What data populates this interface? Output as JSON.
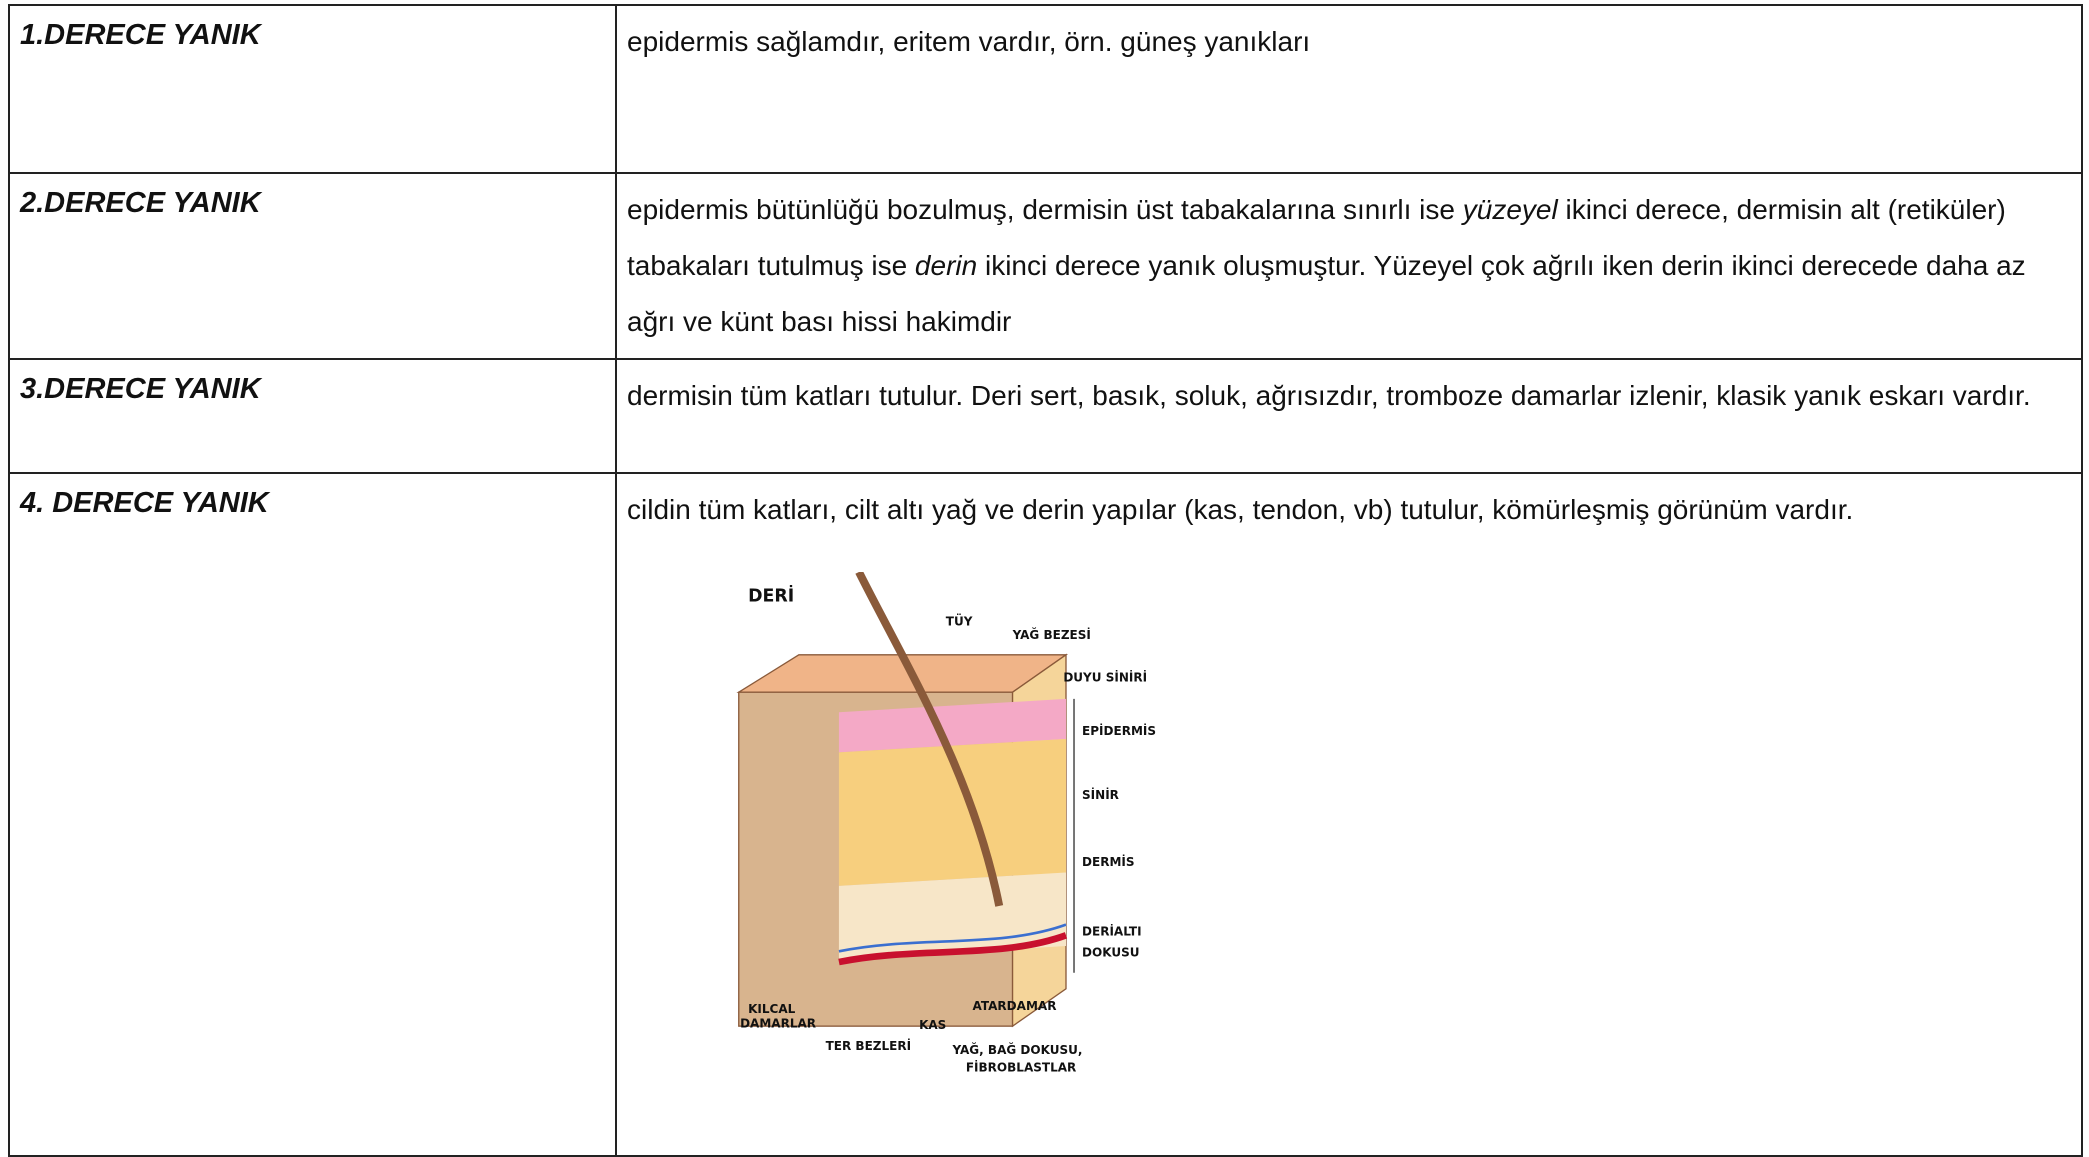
{
  "rows": [
    {
      "label": "1.DERECE YANIK",
      "text_parts": [
        "epidermis sağlamdır, eritem vardır, örn. güneş yanıkları"
      ]
    },
    {
      "label": "2.DERECE YANIK",
      "text_parts": [
        "epidermis bütünlüğü bozulmuş, dermisin üst tabakalarına sınırlı ise ",
        "yüzeyel",
        " ikinci derece, dermisin alt (retiküler) tabakaları tutulmuş ise ",
        "derin",
        " ikinci derece yanık oluşmuştur. Yüzeyel çok ağrılı iken derin ikinci derecede daha az ağrı ve künt bası hissi hakimdir"
      ]
    },
    {
      "label": "3.DERECE YANIK",
      "text_parts": [
        "dermisin tüm katları tutulur. Deri sert, basık, soluk, ağrısızdır, tromboze damarlar izlenir, klasik yanık eskarı vardır."
      ]
    },
    {
      "label": "4. DERECE YANIK",
      "text_parts": [
        "cildin tüm katları, cilt altı yağ ve derin yapılar (kas, tendon, vb) tutulur, kömürleşmiş görünüm vardır."
      ]
    }
  ],
  "figure": {
    "title": "DERİ",
    "labels": [
      "TÜY",
      "YAĞ BEZESİ",
      "DUYU SİNİRİ",
      "EPİDERMİS",
      "SİNİR",
      "DERMİS",
      "DERİALTI",
      "DOKUSU",
      "KILCAL",
      "DAMARLAR",
      "TER BEZLERİ",
      "KAS",
      "ATARDAMAR",
      "YAĞ, BAĞ DOKUSU,",
      "FİBROBLASTLAR"
    ]
  }
}
